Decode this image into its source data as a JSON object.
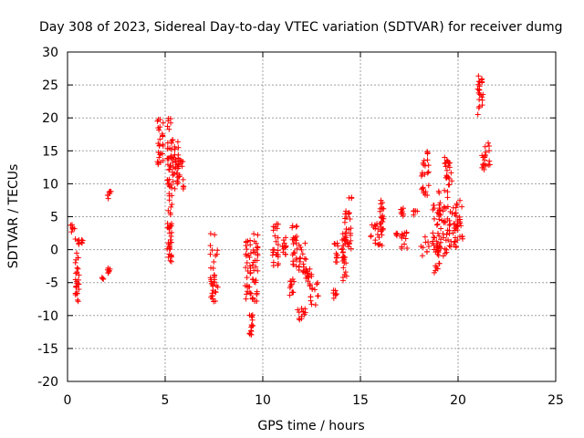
{
  "chart_data": {
    "type": "scatter",
    "title": "Day 308 of 2023, Sidereal Day-to-day VTEC variation (SDTVAR) for receiver dumg",
    "xlabel": "GPS time / hours",
    "ylabel": "SDTVAR / TECUs",
    "xlim": [
      0,
      25
    ],
    "ylim": [
      -20,
      30
    ],
    "xticks": [
      0,
      5,
      10,
      15,
      20,
      25
    ],
    "yticks": [
      -20,
      -15,
      -10,
      -5,
      0,
      5,
      10,
      15,
      20,
      25,
      30
    ],
    "xtick_labels": [
      "0",
      "5",
      "10",
      "15",
      "20",
      "25"
    ],
    "ytick_labels": [
      "-20",
      "-15",
      "-10",
      "-5",
      "0",
      "5",
      "10",
      "15",
      "20",
      "25",
      "30"
    ],
    "grid": true,
    "marker": "+",
    "marker_color": "#ff0000",
    "grid_color": "#a0a0a0",
    "clusters": [
      {
        "x0": 0.15,
        "x1": 0.45,
        "y0": 2.5,
        "y1": 3.8
      },
      {
        "x0": 0.4,
        "x1": 0.6,
        "y0": -8.0,
        "y1": 2.0
      },
      {
        "x0": 0.7,
        "x1": 0.8,
        "y0": 1.0,
        "y1": 1.5
      },
      {
        "x0": 1.75,
        "x1": 1.85,
        "y0": -4.5,
        "y1": -4.2
      },
      {
        "x0": 2.05,
        "x1": 2.25,
        "y0": 7.5,
        "y1": 9.0
      },
      {
        "x0": 2.05,
        "x1": 2.25,
        "y0": -3.8,
        "y1": -2.3
      },
      {
        "x0": 4.6,
        "x1": 4.9,
        "y0": 12.5,
        "y1": 20.3
      },
      {
        "x0": 5.1,
        "x1": 5.35,
        "y0": -2.0,
        "y1": 20.0
      },
      {
        "x0": 5.3,
        "x1": 5.7,
        "y0": 8.0,
        "y1": 17.0
      },
      {
        "x0": 5.6,
        "x1": 5.95,
        "y0": 9.0,
        "y1": 14.0
      },
      {
        "x0": 7.3,
        "x1": 7.7,
        "y0": -8.0,
        "y1": 2.5
      },
      {
        "x0": 9.1,
        "x1": 9.4,
        "y0": -7.5,
        "y1": 1.5
      },
      {
        "x0": 9.3,
        "x1": 9.5,
        "y0": -13.5,
        "y1": -9.0
      },
      {
        "x0": 9.45,
        "x1": 9.75,
        "y0": -8.0,
        "y1": 2.5
      },
      {
        "x0": 10.5,
        "x1": 10.8,
        "y0": -3.0,
        "y1": 4.0
      },
      {
        "x0": 11.0,
        "x1": 11.2,
        "y0": -1.0,
        "y1": 2.5
      },
      {
        "x0": 11.3,
        "x1": 11.6,
        "y0": -7.0,
        "y1": -4.0
      },
      {
        "x0": 11.5,
        "x1": 11.75,
        "y0": -3.0,
        "y1": 4.0
      },
      {
        "x0": 11.75,
        "x1": 12.2,
        "y0": -11.0,
        "y1": -8.5
      },
      {
        "x0": 11.8,
        "x1": 12.3,
        "y0": -4.0,
        "y1": 1.0
      },
      {
        "x0": 12.2,
        "x1": 12.5,
        "y0": -5.0,
        "y1": -2.0
      },
      {
        "x0": 12.4,
        "x1": 12.85,
        "y0": -8.5,
        "y1": -5.0
      },
      {
        "x0": 13.6,
        "x1": 13.8,
        "y0": -7.5,
        "y1": -6.0
      },
      {
        "x0": 13.65,
        "x1": 13.85,
        "y0": -2.0,
        "y1": 1.0
      },
      {
        "x0": 14.05,
        "x1": 14.3,
        "y0": -5.0,
        "y1": 3.0
      },
      {
        "x0": 14.2,
        "x1": 14.55,
        "y0": 0.0,
        "y1": 8.5
      },
      {
        "x0": 15.5,
        "x1": 16.0,
        "y0": 0.5,
        "y1": 4.0
      },
      {
        "x0": 16.0,
        "x1": 16.2,
        "y0": 0.0,
        "y1": 7.5
      },
      {
        "x0": 16.8,
        "x1": 16.9,
        "y0": 2.0,
        "y1": 2.5
      },
      {
        "x0": 17.0,
        "x1": 17.3,
        "y0": 5.0,
        "y1": 6.5
      },
      {
        "x0": 17.1,
        "x1": 17.5,
        "y0": 0.0,
        "y1": 3.0
      },
      {
        "x0": 17.7,
        "x1": 17.95,
        "y0": 5.0,
        "y1": 6.0
      },
      {
        "x0": 18.1,
        "x1": 18.5,
        "y0": 8.0,
        "y1": 15.0
      },
      {
        "x0": 18.1,
        "x1": 19.0,
        "y0": -1.0,
        "y1": 2.0
      },
      {
        "x0": 18.7,
        "x1": 19.1,
        "y0": -3.5,
        "y1": 7.0
      },
      {
        "x0": 19.0,
        "x1": 19.5,
        "y0": -1.0,
        "y1": 9.0
      },
      {
        "x0": 19.3,
        "x1": 19.7,
        "y0": 9.0,
        "y1": 15.0
      },
      {
        "x0": 19.5,
        "x1": 19.9,
        "y0": 0.0,
        "y1": 6.5
      },
      {
        "x0": 19.85,
        "x1": 20.25,
        "y0": 1.0,
        "y1": 8.0
      },
      {
        "x0": 21.0,
        "x1": 21.3,
        "y0": 20.5,
        "y1": 27.0
      },
      {
        "x0": 21.2,
        "x1": 21.65,
        "y0": 12.0,
        "y1": 17.5
      }
    ]
  }
}
